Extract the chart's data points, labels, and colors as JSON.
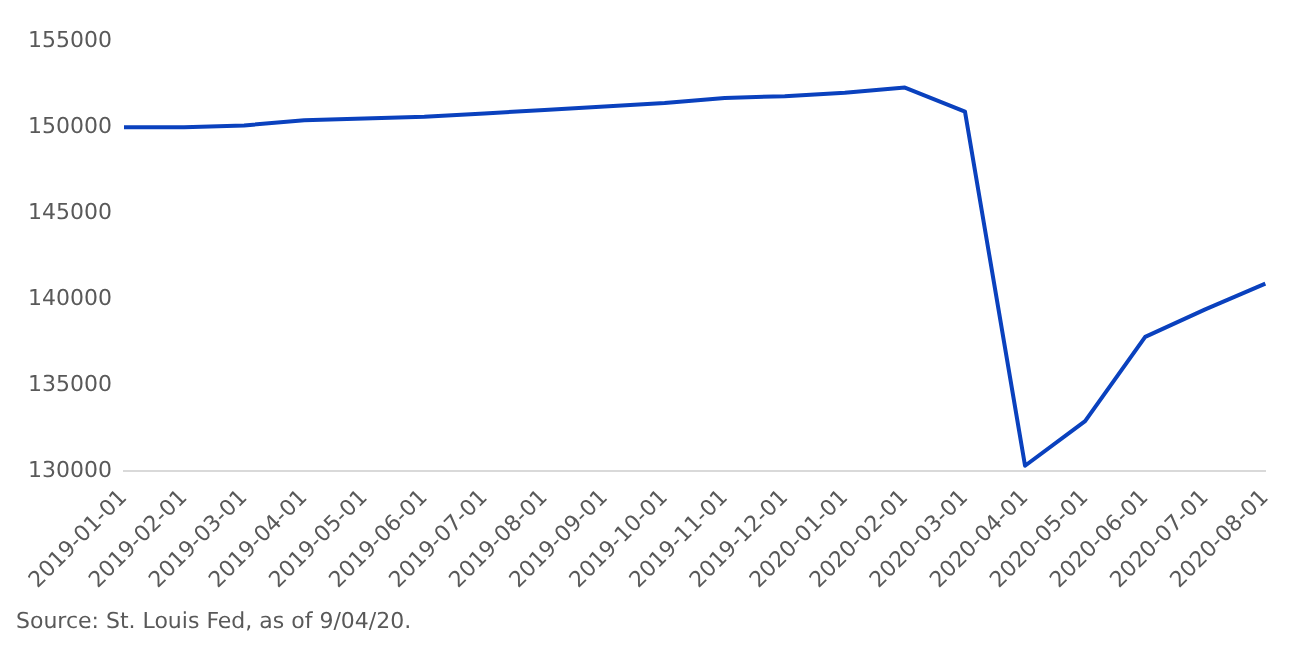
{
  "chart_data": {
    "type": "line",
    "categories": [
      "2019-01-01",
      "2019-02-01",
      "2019-03-01",
      "2019-04-01",
      "2019-05-01",
      "2019-06-01",
      "2019-07-01",
      "2019-08-01",
      "2019-09-01",
      "2019-10-01",
      "2019-11-01",
      "2019-12-01",
      "2020-01-01",
      "2020-02-01",
      "2020-03-01",
      "2020-04-01",
      "2020-05-01",
      "2020-06-01",
      "2020-07-01",
      "2020-08-01"
    ],
    "series": [
      {
        "color": "#0a41be",
        "values": [
          150000,
          150000,
          150100,
          150400,
          150500,
          150600,
          150800,
          151000,
          151200,
          151400,
          151700,
          151800,
          152000,
          152300,
          150900,
          130300,
          132900,
          137800,
          139400,
          140900
        ]
      }
    ],
    "ylim": [
      130000,
      155000
    ],
    "yticks": [
      130000,
      135000,
      140000,
      145000,
      150000,
      155000
    ],
    "grid": false,
    "legend": false,
    "marker": "none",
    "line_style": "solid",
    "annotations": [
      "Source: St. Louis Fed, as of 9/04/20."
    ]
  }
}
